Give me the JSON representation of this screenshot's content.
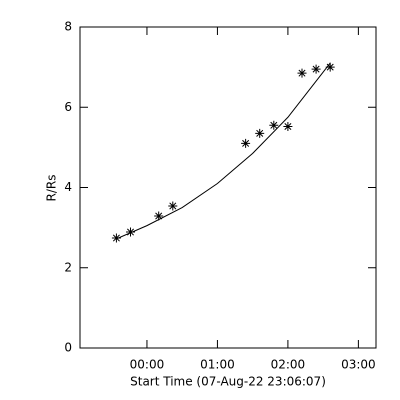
{
  "chart_data": {
    "type": "scatter",
    "xlabel": "Start Time (07-Aug-22 23:06:07)",
    "ylabel": "R/Rs",
    "xlim": [
      -57,
      195
    ],
    "xticks": [
      {
        "value": 0,
        "label": "00:00"
      },
      {
        "value": 60,
        "label": "01:00"
      },
      {
        "value": 120,
        "label": "02:00"
      },
      {
        "value": 180,
        "label": "03:00"
      }
    ],
    "ylim": [
      0,
      8
    ],
    "yticks": [
      0,
      2,
      4,
      6,
      8
    ],
    "color": "#000000",
    "series": [
      {
        "x": [
          -26,
          -14,
          10,
          22,
          84,
          96,
          108,
          120,
          132,
          144,
          156
        ],
        "values": [
          2.74,
          2.89,
          3.29,
          3.54,
          5.1,
          5.35,
          5.55,
          5.52,
          6.85,
          6.95,
          7.0
        ]
      },
      {
        "x": [
          -26,
          0,
          30,
          60,
          90,
          120,
          156
        ],
        "values": [
          2.72,
          3.05,
          3.5,
          4.1,
          4.85,
          5.75,
          7.1
        ]
      }
    ]
  }
}
